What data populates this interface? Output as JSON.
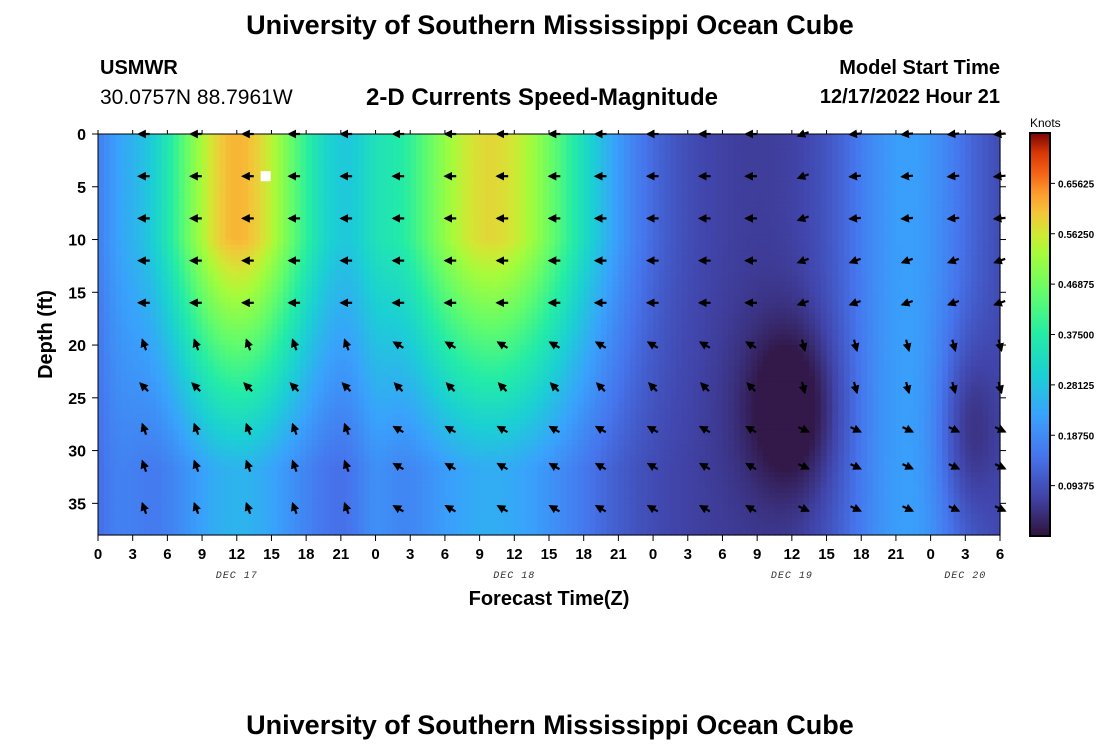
{
  "header": {
    "title": "University of Southern Mississippi Ocean Cube",
    "station": "USMWR",
    "coords": "30.0757N  88.7961W",
    "subtitle": "2-D Currents Speed-Magnitude",
    "model_start_label": "Model Start Time",
    "model_start_value": "12/17/2022 Hour 21",
    "footer_title": "University of Southern Mississippi Ocean Cube"
  },
  "chart_data": {
    "type": "heatmap",
    "title": "2-D Currents Speed-Magnitude",
    "xlabel": "Forecast Time(Z)",
    "ylabel": "Depth (ft)",
    "x_range_hours": [
      0,
      78
    ],
    "y_range_ft": [
      0,
      38
    ],
    "y_inverted": true,
    "x_ticks": [
      "0",
      "3",
      "6",
      "9",
      "12",
      "15",
      "18",
      "21",
      "0",
      "3",
      "6",
      "9",
      "12",
      "15",
      "18",
      "21",
      "0",
      "3",
      "6",
      "9",
      "12",
      "15",
      "18",
      "21",
      "0",
      "3",
      "6"
    ],
    "y_ticks": [
      "0",
      "5",
      "10",
      "15",
      "20",
      "25",
      "30",
      "35"
    ],
    "date_labels": [
      {
        "label": "DEC 17",
        "hour": 12
      },
      {
        "label": "DEC 18",
        "hour": 36
      },
      {
        "label": "DEC 19",
        "hour": 60
      },
      {
        "label": "DEC 20",
        "hour": 75
      }
    ],
    "colorbar": {
      "unit": "Knots",
      "range": [
        0,
        0.75
      ],
      "ticks": [
        "0.65625",
        "0.56250",
        "0.46875",
        "0.37500",
        "0.28125",
        "0.18750",
        "0.09375"
      ]
    },
    "arrow_columns_hours": [
      4,
      8.5,
      13,
      17,
      21.5,
      26,
      30.5,
      35,
      39.5,
      43.5,
      48,
      52.5,
      56.5,
      61,
      65.5,
      70,
      74,
      78
    ],
    "arrow_rows_ft": [
      0,
      4,
      8,
      12,
      16,
      20,
      24,
      28,
      31.5,
      35.5
    ],
    "marker": {
      "hour": 14.5,
      "depth_ft": 4
    }
  }
}
